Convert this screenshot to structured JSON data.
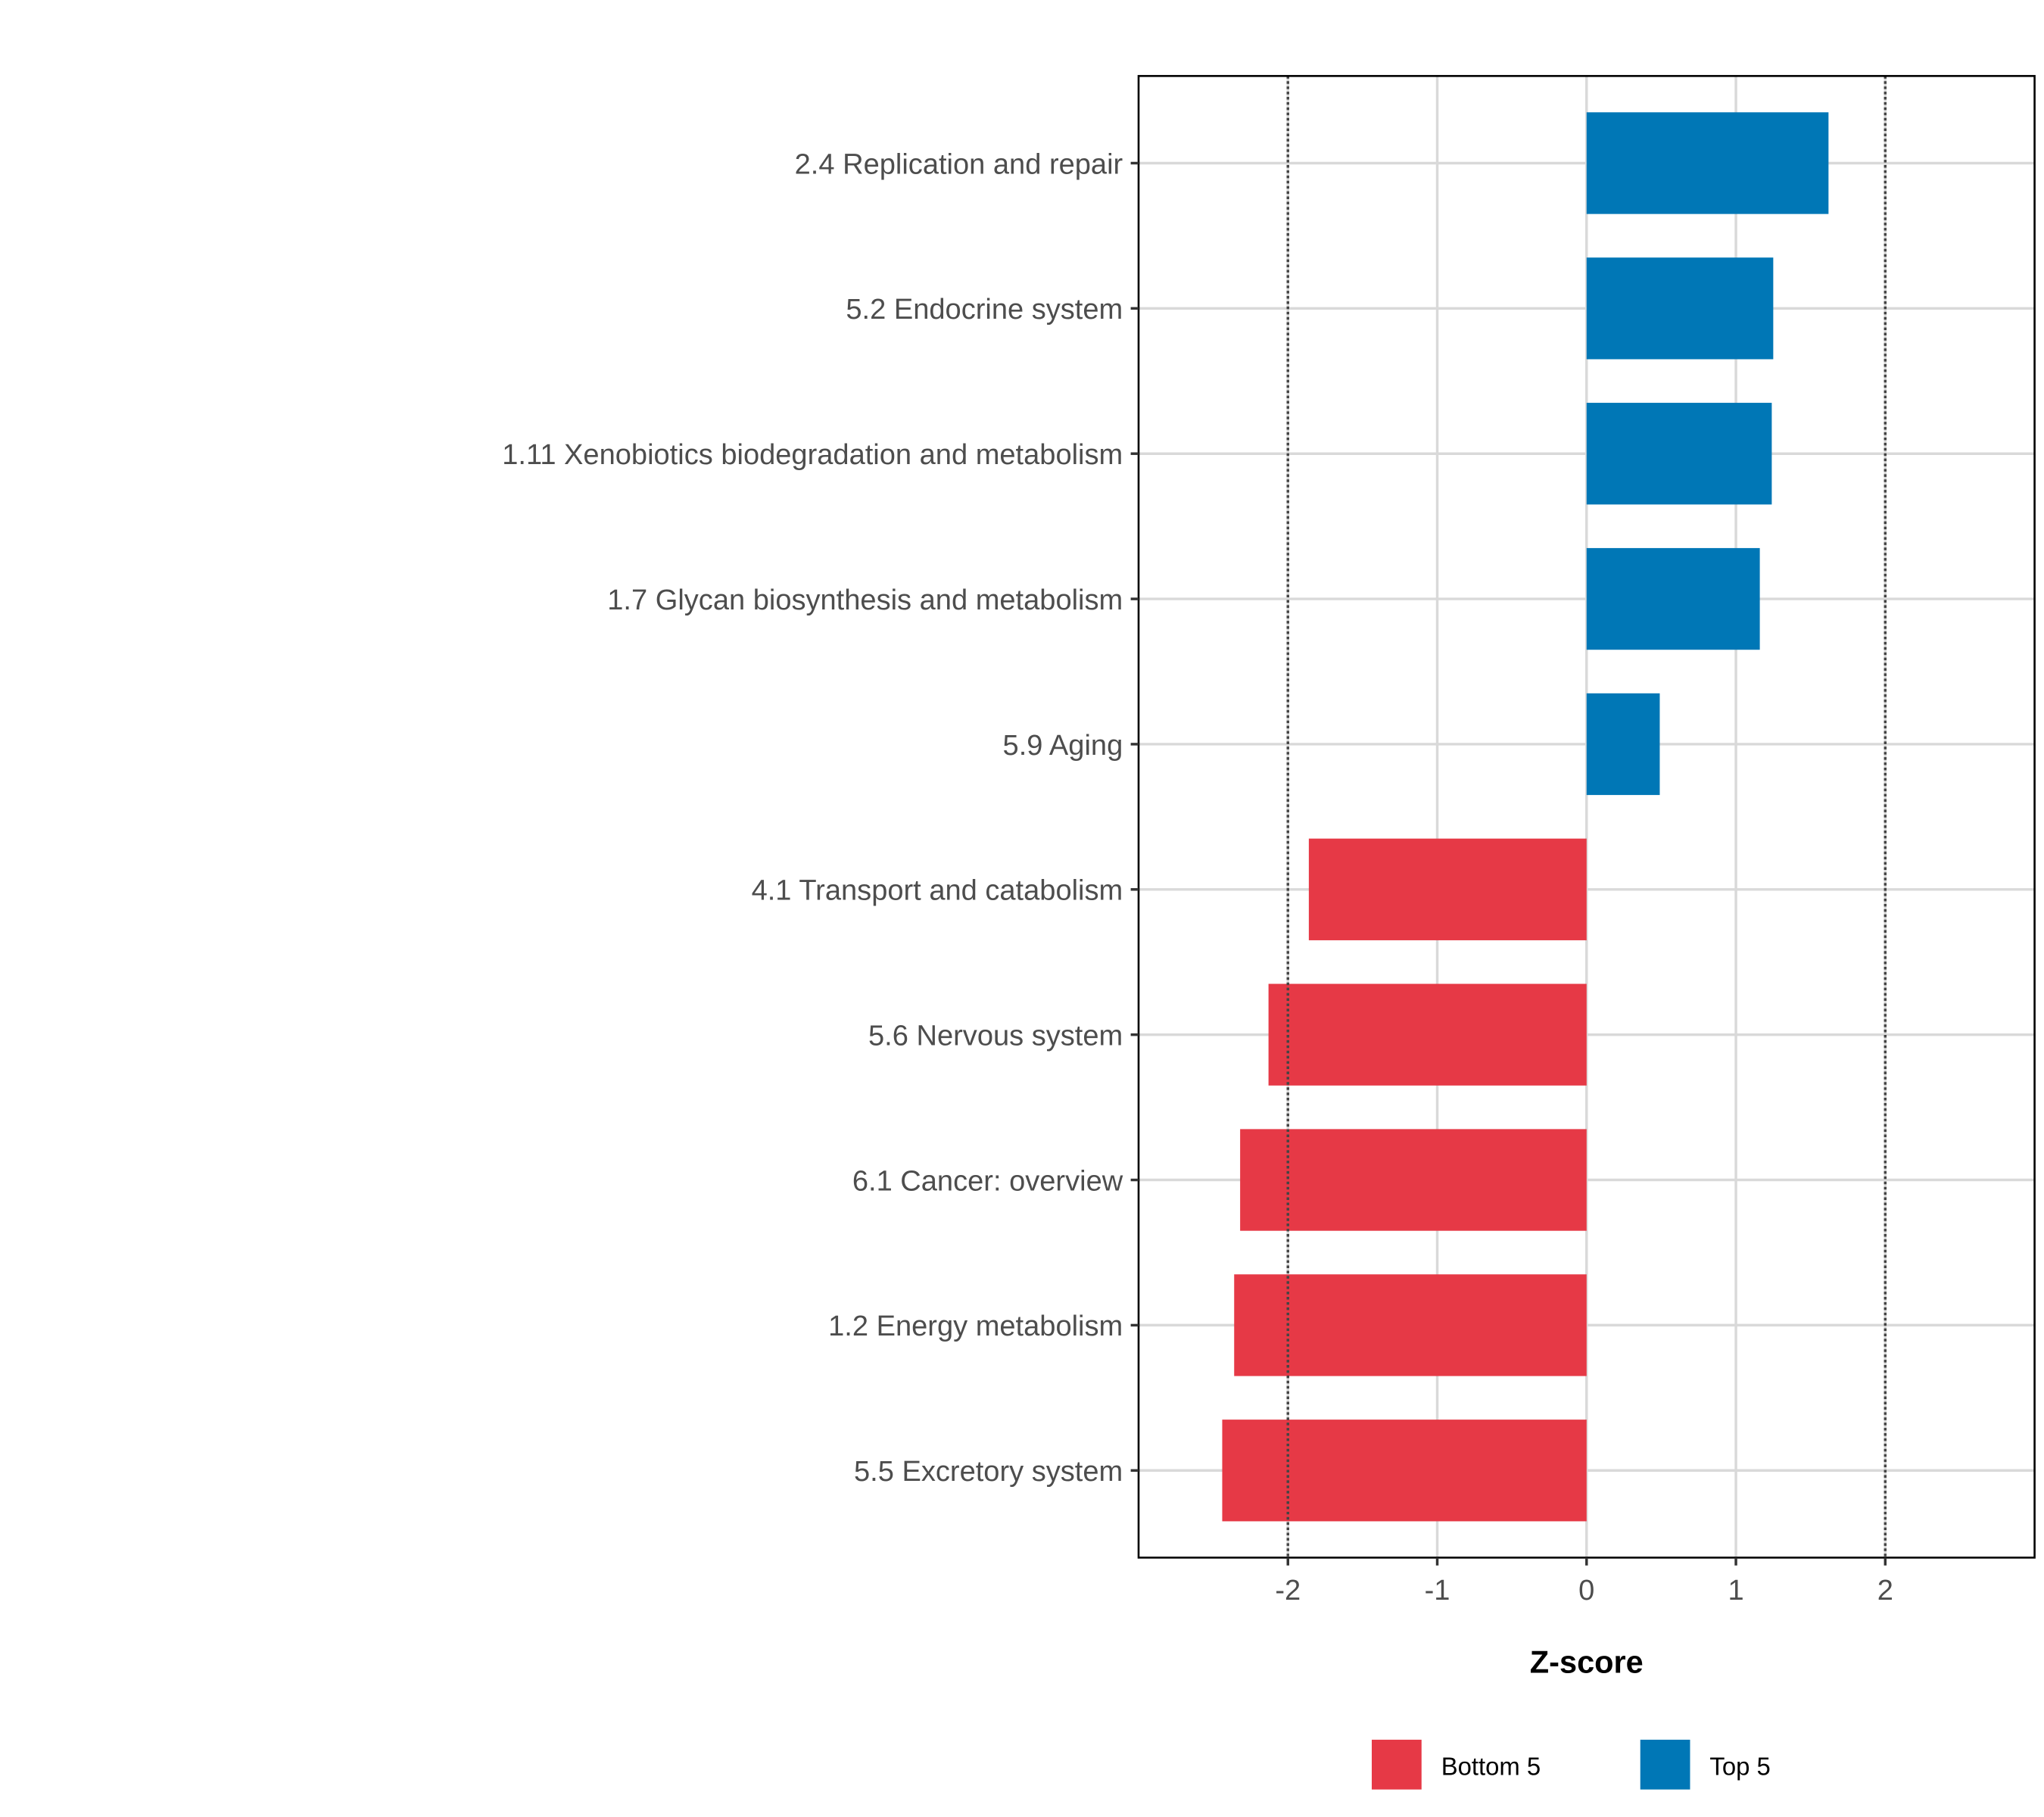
{
  "chart_data": {
    "type": "bar",
    "orientation": "horizontal",
    "title": "",
    "xlabel": "Z-score",
    "ylabel": "",
    "xlim": [
      -3,
      3
    ],
    "xticks": [
      -2,
      -1,
      0,
      1,
      2
    ],
    "xtick_labels": [
      "-2",
      "-1",
      "0",
      "1",
      "2"
    ],
    "reference_lines": [
      -2,
      2
    ],
    "grid": true,
    "categories": [
      "2.4 Replication and repair",
      "5.2 Endocrine system",
      "1.11 Xenobiotics biodegradation and metabolism",
      "1.7 Glycan biosynthesis and metabolism",
      "5.9 Aging",
      "4.1 Transport and catabolism",
      "5.6 Nervous system",
      "6.1 Cancer: overview",
      "1.2 Energy metabolism",
      "5.5 Excretory system"
    ],
    "values": [
      1.62,
      1.25,
      1.24,
      1.16,
      0.49,
      -1.86,
      -2.13,
      -2.32,
      -2.36,
      -2.44
    ],
    "groups": [
      "Top 5",
      "Top 5",
      "Top 5",
      "Top 5",
      "Top 5",
      "Bottom 5",
      "Bottom 5",
      "Bottom 5",
      "Bottom 5",
      "Bottom 5"
    ],
    "legend": {
      "placement": "bottom",
      "entries": [
        {
          "label": "Bottom 5",
          "color": "#E63946"
        },
        {
          "label": "Top 5",
          "color": "#0077B6"
        }
      ]
    }
  }
}
